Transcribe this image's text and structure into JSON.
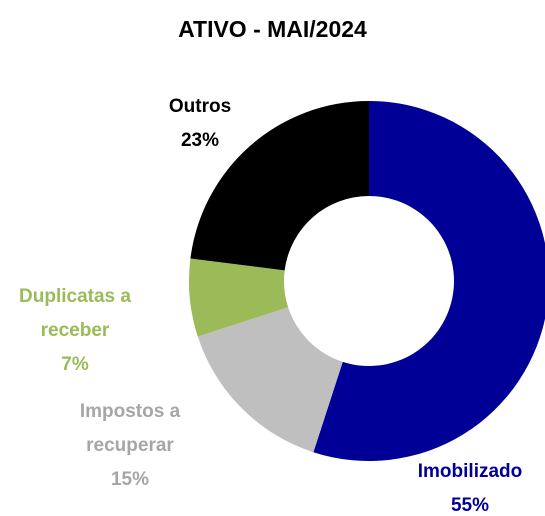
{
  "chart_data": {
    "type": "donut",
    "title": "ATIVO - MAI/2024",
    "categories": [
      "Imobilizado",
      "Impostos a recuperar",
      "Duplicatas a receber",
      "Outros"
    ],
    "values": [
      55,
      15,
      7,
      23
    ],
    "value_labels": [
      "55%",
      "15%",
      "7%",
      "23%"
    ],
    "colors": [
      "#000096",
      "#BFBFBF",
      "#9BBB59",
      "#000000"
    ],
    "label_colors": [
      "#000096",
      "#A6A6A6",
      "#9BBB59",
      "#000000"
    ]
  }
}
